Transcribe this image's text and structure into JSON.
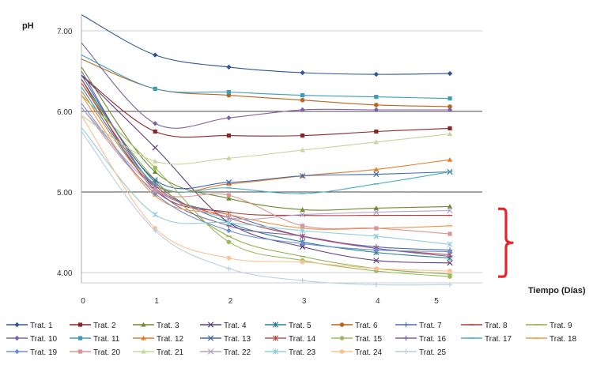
{
  "chart_data": {
    "type": "line",
    "title": "",
    "ylabel": "pH",
    "xlabel": "Tiempo (Días)",
    "x": [
      0,
      1,
      2,
      3,
      4,
      5
    ],
    "ylim": [
      3.9,
      7.2
    ],
    "y_ticks": [
      "7.00",
      "6.00",
      "5.00",
      "4.00"
    ],
    "y_tick_values": [
      7,
      6,
      5,
      4
    ],
    "x_ticks": [
      "0",
      "1",
      "2",
      "3",
      "4",
      "5"
    ],
    "grid": true,
    "legend_position": "bottom",
    "annotation": {
      "type": "bracket",
      "label": "",
      "y_range": [
        3.95,
        4.85
      ],
      "color": "#e8232a"
    },
    "series": [
      {
        "name": "Trat. 1",
        "color": "#2e5597",
        "marker": "diamond",
        "values": [
          7.2,
          6.7,
          6.55,
          6.48,
          6.46,
          6.47
        ]
      },
      {
        "name": "Trat. 2",
        "color": "#8b2524",
        "marker": "square",
        "values": [
          6.45,
          5.75,
          5.7,
          5.7,
          5.75,
          5.79
        ]
      },
      {
        "name": "Trat. 3",
        "color": "#6e8a31",
        "marker": "triangle",
        "values": [
          6.55,
          5.25,
          4.92,
          4.78,
          4.8,
          4.82
        ]
      },
      {
        "name": "Trat. 4",
        "color": "#5c3f80",
        "marker": "x",
        "values": [
          6.45,
          5.55,
          4.62,
          4.32,
          4.15,
          4.12
        ]
      },
      {
        "name": "Trat. 5",
        "color": "#2b8198",
        "marker": "star",
        "values": [
          6.4,
          5.12,
          4.62,
          4.38,
          4.25,
          4.18
        ]
      },
      {
        "name": "Trat. 6",
        "color": "#b8661d",
        "marker": "circle",
        "values": [
          6.65,
          6.28,
          6.2,
          6.14,
          6.08,
          6.06
        ]
      },
      {
        "name": "Trat. 7",
        "color": "#4a6eb5",
        "marker": "plus",
        "values": [
          6.3,
          5.05,
          4.72,
          4.45,
          4.32,
          4.28
        ]
      },
      {
        "name": "Trat. 8",
        "color": "#b23a37",
        "marker": "dash",
        "values": [
          6.4,
          5.02,
          4.75,
          4.71,
          4.71,
          4.71
        ]
      },
      {
        "name": "Trat. 9",
        "color": "#8faf48",
        "marker": "dash",
        "values": [
          6.35,
          5.15,
          4.45,
          4.2,
          4.05,
          3.98
        ]
      },
      {
        "name": "Trat. 10",
        "color": "#8064a2",
        "marker": "diamond",
        "values": [
          6.85,
          5.85,
          5.92,
          6.02,
          6.02,
          6.02
        ]
      },
      {
        "name": "Trat. 11",
        "color": "#3b9dba",
        "marker": "square",
        "values": [
          6.7,
          6.28,
          6.24,
          6.2,
          6.18,
          6.16
        ]
      },
      {
        "name": "Trat. 12",
        "color": "#e37d2a",
        "marker": "triangle",
        "values": [
          6.25,
          5.08,
          5.1,
          5.2,
          5.28,
          5.4
        ]
      },
      {
        "name": "Trat. 13",
        "color": "#3f69a8",
        "marker": "x",
        "values": [
          6.45,
          5.15,
          5.12,
          5.2,
          5.22,
          5.25
        ]
      },
      {
        "name": "Trat. 14",
        "color": "#c0504d",
        "marker": "star",
        "values": [
          6.35,
          5.08,
          4.68,
          4.45,
          4.3,
          4.22
        ]
      },
      {
        "name": "Trat. 15",
        "color": "#9bbb59",
        "marker": "circle",
        "values": [
          6.2,
          5.3,
          4.38,
          4.15,
          4.02,
          3.95
        ]
      },
      {
        "name": "Trat. 16",
        "color": "#7b5ea7",
        "marker": "plus",
        "values": [
          6.5,
          5.05,
          4.58,
          4.45,
          4.3,
          4.2
        ]
      },
      {
        "name": "Trat. 17",
        "color": "#4bacc6",
        "marker": "dash",
        "values": [
          6.3,
          5.1,
          5.05,
          4.98,
          5.1,
          5.25
        ]
      },
      {
        "name": "Trat. 18",
        "color": "#f79646",
        "marker": "dash",
        "values": [
          6.2,
          4.95,
          4.72,
          4.55,
          4.55,
          4.58
        ]
      },
      {
        "name": "Trat. 19",
        "color": "#6b8fd0",
        "marker": "diamond",
        "values": [
          6.1,
          4.98,
          4.52,
          4.36,
          4.28,
          4.26
        ]
      },
      {
        "name": "Trat. 20",
        "color": "#d99694",
        "marker": "square",
        "values": [
          6.05,
          5.02,
          4.96,
          4.58,
          4.55,
          4.48
        ]
      },
      {
        "name": "Trat. 21",
        "color": "#c3d69b",
        "marker": "triangle",
        "values": [
          5.95,
          5.38,
          5.42,
          5.52,
          5.62,
          5.72
        ]
      },
      {
        "name": "Trat. 22",
        "color": "#b3a2c7",
        "marker": "x",
        "values": [
          6.05,
          5.05,
          4.68,
          4.72,
          4.75,
          4.77
        ]
      },
      {
        "name": "Trat. 23",
        "color": "#93cddd",
        "marker": "star",
        "values": [
          5.8,
          4.72,
          4.62,
          4.52,
          4.45,
          4.35
        ]
      },
      {
        "name": "Trat. 24",
        "color": "#fac090",
        "marker": "circle",
        "values": [
          5.95,
          4.55,
          4.18,
          4.13,
          4.05,
          4.02
        ]
      },
      {
        "name": "Trat. 25",
        "color": "#b9cde5",
        "marker": "plus",
        "values": [
          5.75,
          4.52,
          4.05,
          3.9,
          3.85,
          3.85
        ]
      }
    ]
  }
}
